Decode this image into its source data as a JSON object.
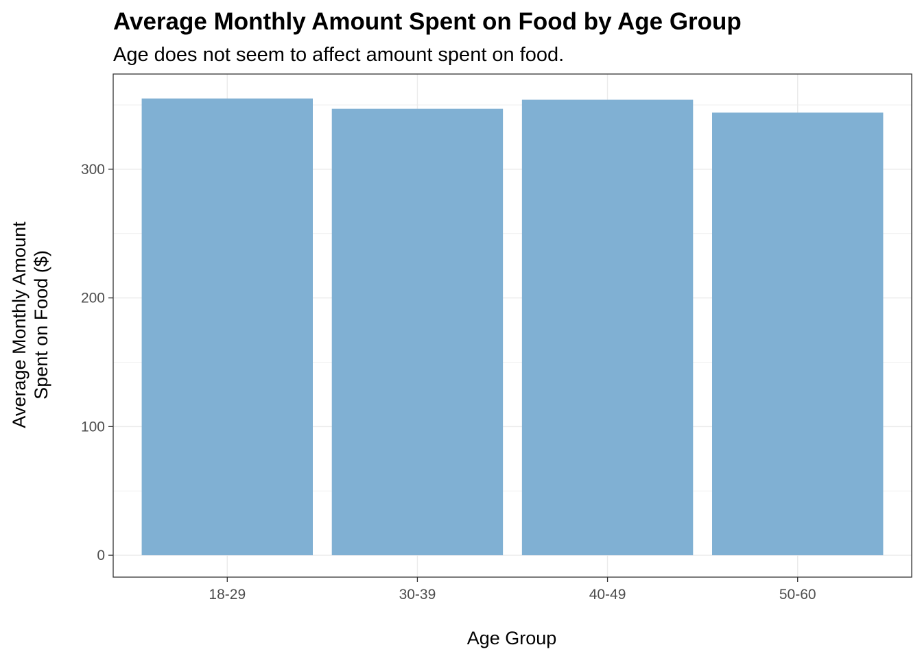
{
  "chart_data": {
    "type": "bar",
    "title": "Average Monthly Amount Spent on Food by Age Group",
    "subtitle": "Age does not seem to affect amount spent on food.",
    "xlabel": "Age Group",
    "ylabel_lines": [
      "Average Monthly Amount",
      "Spent on Food ($)"
    ],
    "categories": [
      "18-29",
      "30-39",
      "40-49",
      "50-60"
    ],
    "values": [
      355,
      347,
      354,
      344
    ],
    "ylim": [
      -17,
      374
    ],
    "yticks": [
      0,
      100,
      200,
      300
    ],
    "ytick_labels": [
      "0",
      "100",
      "200",
      "300"
    ],
    "grid": true,
    "legend": "none",
    "bar_color": "#80b0d3",
    "grid_color": "#ebebeb",
    "panel_border_color": "#333333"
  }
}
